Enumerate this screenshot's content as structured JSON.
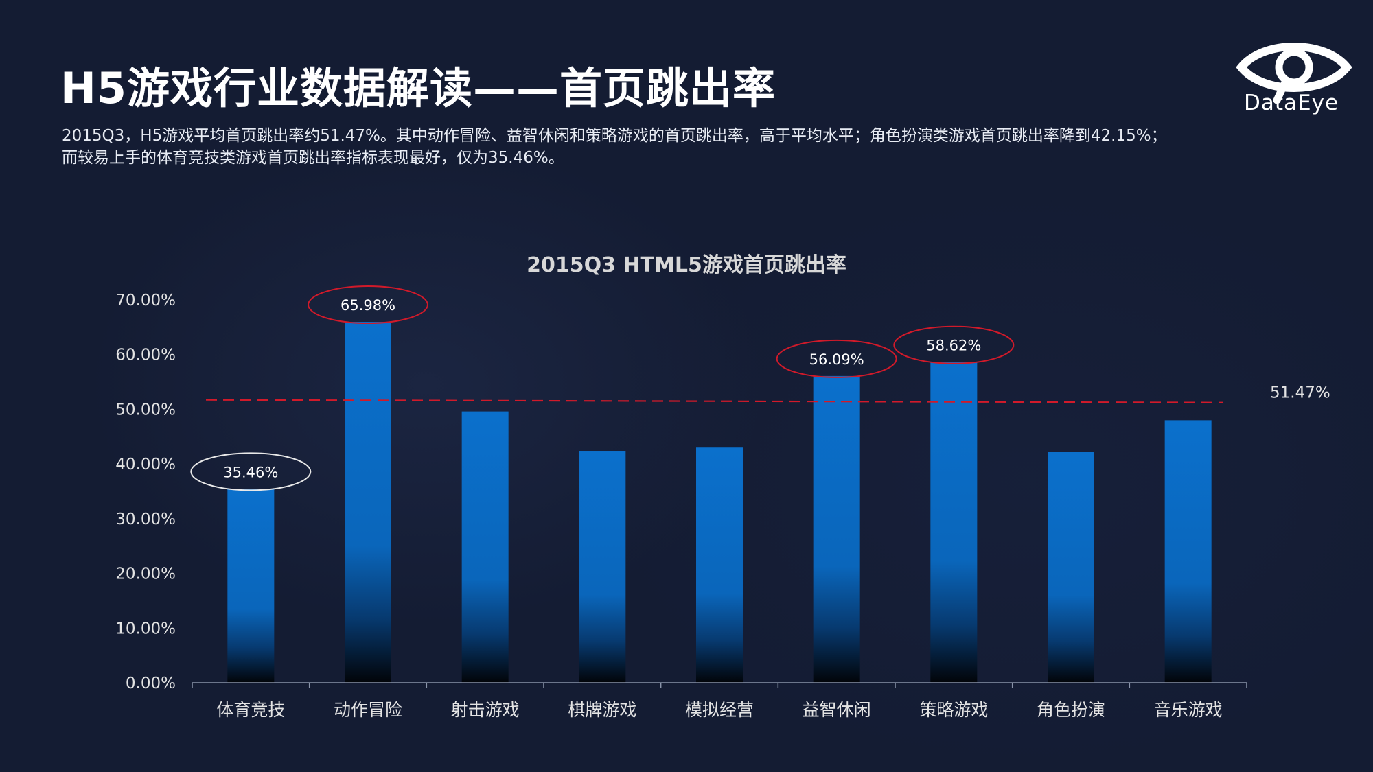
{
  "header": {
    "title": "H5游戏行业数据解读——首页跳出率",
    "description_line1": "2015Q3，H5游戏平均首页跳出率约51.47%。其中动作冒险、益智休闲和策略游戏的首页跳出率，高于平均水平；角色扮演类游戏首页跳出率降到42.15%；",
    "description_line2": "而较易上手的体育竞技类游戏首页跳出率指标表现最好，仅为35.46%。"
  },
  "logo": {
    "text": "DataEye",
    "icon": "eye-icon"
  },
  "chart_data": {
    "type": "bar",
    "title": "2015Q3 HTML5游戏首页跳出率",
    "categories": [
      "体育竞技",
      "动作冒险",
      "射击游戏",
      "棋牌游戏",
      "模拟经营",
      "益智休闲",
      "策略游戏",
      "角色扮演",
      "音乐游戏"
    ],
    "values": [
      35.46,
      65.98,
      49.6,
      42.4,
      43.0,
      56.09,
      58.62,
      42.15,
      48.0
    ],
    "y_ticks": [
      "0.00%",
      "10.00%",
      "20.00%",
      "30.00%",
      "40.00%",
      "50.00%",
      "60.00%",
      "70.00%"
    ],
    "ylim": [
      0,
      70
    ],
    "average": {
      "value": 51.47,
      "label": "51.47%"
    },
    "highlight_labels": [
      {
        "index": 0,
        "label": "35.46%",
        "ring_color": "#e8e8e8"
      },
      {
        "index": 1,
        "label": "65.98%",
        "ring_color": "#d11a2a"
      },
      {
        "index": 5,
        "label": "56.09%",
        "ring_color": "#d11a2a"
      },
      {
        "index": 6,
        "label": "58.62%",
        "ring_color": "#d11a2a"
      }
    ],
    "bar_color": "#0a6fc9",
    "average_line_color": "#d11a2a",
    "grid": false,
    "legend": "none"
  }
}
